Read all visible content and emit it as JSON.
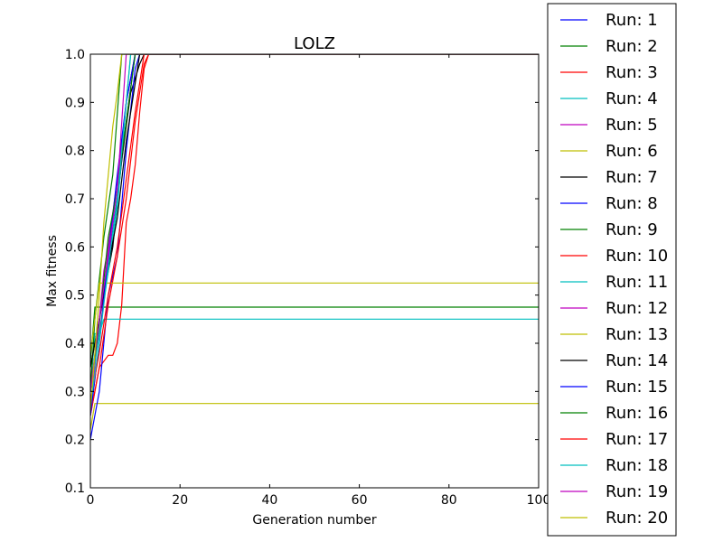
{
  "chart_data": {
    "type": "line",
    "title": "LOLZ",
    "xlabel": "Generation number",
    "ylabel": "Max fitness",
    "xlim": [
      0,
      100
    ],
    "ylim": [
      0.1,
      1.0
    ],
    "xticks": [
      "0",
      "20",
      "40",
      "60",
      "80",
      "100"
    ],
    "yticks": [
      "0.1",
      "0.2",
      "0.3",
      "0.4",
      "0.5",
      "0.6",
      "0.7",
      "0.8",
      "0.9",
      "1.0"
    ],
    "grid": false,
    "legend_position": "outside-right",
    "series": [
      {
        "name": "Run: 1",
        "color": "#0000ff",
        "x": [
          0,
          2,
          4,
          6,
          8,
          10,
          12,
          100
        ],
        "y": [
          0.3,
          0.45,
          0.57,
          0.7,
          0.86,
          1.0,
          1.0,
          1.0
        ]
      },
      {
        "name": "Run: 2",
        "color": "#008000",
        "x": [
          0,
          1,
          2,
          100
        ],
        "y": [
          0.36,
          0.475,
          0.475,
          0.475
        ]
      },
      {
        "name": "Run: 3",
        "color": "#ff0000",
        "x": [
          0,
          2,
          4,
          5,
          6,
          7,
          8,
          9,
          10,
          11,
          12,
          13,
          100
        ],
        "y": [
          0.25,
          0.35,
          0.375,
          0.375,
          0.4,
          0.48,
          0.65,
          0.7,
          0.77,
          0.88,
          0.97,
          1.0,
          1.0
        ]
      },
      {
        "name": "Run: 4",
        "color": "#00bfbf",
        "x": [
          0,
          1,
          2,
          3,
          100
        ],
        "y": [
          0.3,
          0.42,
          0.42,
          0.45,
          0.45
        ]
      },
      {
        "name": "Run: 5",
        "color": "#bf00bf",
        "x": [
          0,
          2,
          3,
          4,
          6,
          8,
          9,
          10,
          100
        ],
        "y": [
          0.25,
          0.45,
          0.55,
          0.6,
          0.74,
          0.9,
          0.95,
          1.0,
          1.0
        ]
      },
      {
        "name": "Run: 6",
        "color": "#bfbf00",
        "x": [
          0,
          1,
          100
        ],
        "y": [
          0.22,
          0.275,
          0.275
        ]
      },
      {
        "name": "Run: 7",
        "color": "#000000",
        "x": [
          0,
          3,
          5,
          7,
          9,
          11,
          12,
          100
        ],
        "y": [
          0.35,
          0.5,
          0.6,
          0.78,
          0.92,
          0.98,
          1.0,
          1.0
        ]
      },
      {
        "name": "Run: 8",
        "color": "#0000ff",
        "x": [
          0,
          2,
          4,
          6,
          8,
          10,
          11,
          100
        ],
        "y": [
          0.2,
          0.3,
          0.5,
          0.58,
          0.8,
          0.97,
          1.0,
          1.0
        ]
      },
      {
        "name": "Run: 9",
        "color": "#008000",
        "x": [
          0,
          1,
          3,
          5,
          7,
          100
        ],
        "y": [
          0.3,
          0.45,
          0.62,
          0.75,
          1.0,
          1.0
        ]
      },
      {
        "name": "Run: 10",
        "color": "#ff0000",
        "x": [
          0,
          2,
          4,
          6,
          8,
          10,
          12,
          13,
          100
        ],
        "y": [
          0.25,
          0.35,
          0.48,
          0.58,
          0.7,
          0.86,
          0.98,
          1.0,
          1.0
        ]
      },
      {
        "name": "Run: 11",
        "color": "#00bfbf",
        "x": [
          0,
          2,
          4,
          6,
          8,
          9,
          100
        ],
        "y": [
          0.3,
          0.42,
          0.55,
          0.68,
          0.9,
          1.0,
          1.0
        ]
      },
      {
        "name": "Run: 12",
        "color": "#bf00bf",
        "x": [
          0,
          2,
          4,
          6,
          8,
          10,
          100
        ],
        "y": [
          0.25,
          0.4,
          0.6,
          0.72,
          0.9,
          1.0,
          1.0
        ]
      },
      {
        "name": "Run: 13",
        "color": "#bfbf00",
        "x": [
          0,
          1,
          2,
          100
        ],
        "y": [
          0.38,
          0.45,
          0.525,
          0.525
        ]
      },
      {
        "name": "Run: 14",
        "color": "#000000",
        "x": [
          0,
          2,
          4,
          6,
          8,
          10,
          11,
          100
        ],
        "y": [
          0.35,
          0.45,
          0.56,
          0.66,
          0.82,
          0.94,
          1.0,
          1.0
        ]
      },
      {
        "name": "Run: 15",
        "color": "#0000ff",
        "x": [
          0,
          2,
          4,
          6,
          8,
          10,
          100
        ],
        "y": [
          0.25,
          0.4,
          0.58,
          0.75,
          0.9,
          1.0,
          1.0
        ]
      },
      {
        "name": "Run: 16",
        "color": "#008000",
        "x": [
          0,
          2,
          4,
          6,
          8,
          10,
          100
        ],
        "y": [
          0.3,
          0.44,
          0.62,
          0.72,
          0.86,
          1.0,
          1.0
        ]
      },
      {
        "name": "Run: 17",
        "color": "#ff0000",
        "x": [
          0,
          2,
          4,
          6,
          8,
          10,
          12,
          100
        ],
        "y": [
          0.28,
          0.38,
          0.5,
          0.6,
          0.74,
          0.88,
          1.0,
          1.0
        ]
      },
      {
        "name": "Run: 18",
        "color": "#00bfbf",
        "x": [
          0,
          2,
          4,
          6,
          8,
          9,
          100
        ],
        "y": [
          0.27,
          0.4,
          0.56,
          0.7,
          0.9,
          1.0,
          1.0
        ]
      },
      {
        "name": "Run: 19",
        "color": "#bf00bf",
        "x": [
          0,
          2,
          4,
          6,
          8,
          100
        ],
        "y": [
          0.3,
          0.45,
          0.58,
          0.72,
          1.0,
          1.0
        ]
      },
      {
        "name": "Run: 20",
        "color": "#bfbf00",
        "x": [
          0,
          1,
          2,
          3,
          5,
          6,
          7,
          100
        ],
        "y": [
          0.26,
          0.38,
          0.5,
          0.65,
          0.85,
          0.92,
          1.0,
          1.0
        ]
      }
    ]
  }
}
